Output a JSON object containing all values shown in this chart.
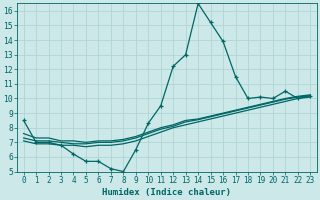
{
  "title": "",
  "xlabel": "Humidex (Indice chaleur)",
  "ylabel": "",
  "bg_color": "#cce8e8",
  "grid_color": "#b0d4d4",
  "line_color": "#006666",
  "x_values": [
    0,
    1,
    2,
    3,
    4,
    5,
    6,
    7,
    8,
    9,
    10,
    11,
    12,
    13,
    14,
    15,
    16,
    17,
    18,
    19,
    20,
    21,
    22,
    23
  ],
  "y_main": [
    8.5,
    7.0,
    7.0,
    6.8,
    6.2,
    5.7,
    5.7,
    5.2,
    5.0,
    6.5,
    8.3,
    9.5,
    12.2,
    13.0,
    16.5,
    15.2,
    13.9,
    11.5,
    10.0,
    10.1,
    10.0,
    10.5,
    10.0,
    10.2
  ],
  "y_trend1": [
    7.6,
    7.3,
    7.3,
    7.1,
    7.1,
    7.0,
    7.1,
    7.1,
    7.2,
    7.4,
    7.7,
    8.0,
    8.2,
    8.5,
    8.6,
    8.8,
    9.0,
    9.2,
    9.4,
    9.6,
    9.8,
    10.0,
    10.15,
    10.25
  ],
  "y_trend2": [
    7.3,
    7.1,
    7.1,
    7.0,
    6.9,
    6.9,
    7.0,
    7.0,
    7.1,
    7.3,
    7.6,
    7.9,
    8.1,
    8.4,
    8.55,
    8.75,
    8.95,
    9.15,
    9.35,
    9.55,
    9.75,
    9.95,
    10.1,
    10.2
  ],
  "y_trend3": [
    7.1,
    6.9,
    6.9,
    6.8,
    6.8,
    6.7,
    6.8,
    6.8,
    6.9,
    7.1,
    7.4,
    7.7,
    8.0,
    8.2,
    8.4,
    8.6,
    8.8,
    9.0,
    9.2,
    9.4,
    9.6,
    9.8,
    10.0,
    10.1
  ],
  "ylim": [
    5,
    16.5
  ],
  "xlim": [
    -0.5,
    23.5
  ],
  "yticks": [
    5,
    6,
    7,
    8,
    9,
    10,
    11,
    12,
    13,
    14,
    15,
    16
  ],
  "xticks": [
    0,
    1,
    2,
    3,
    4,
    5,
    6,
    7,
    8,
    9,
    10,
    11,
    12,
    13,
    14,
    15,
    16,
    17,
    18,
    19,
    20,
    21,
    22,
    23
  ],
  "tick_fontsize": 5.5,
  "xlabel_fontsize": 6.5,
  "marker_size": 3.0
}
